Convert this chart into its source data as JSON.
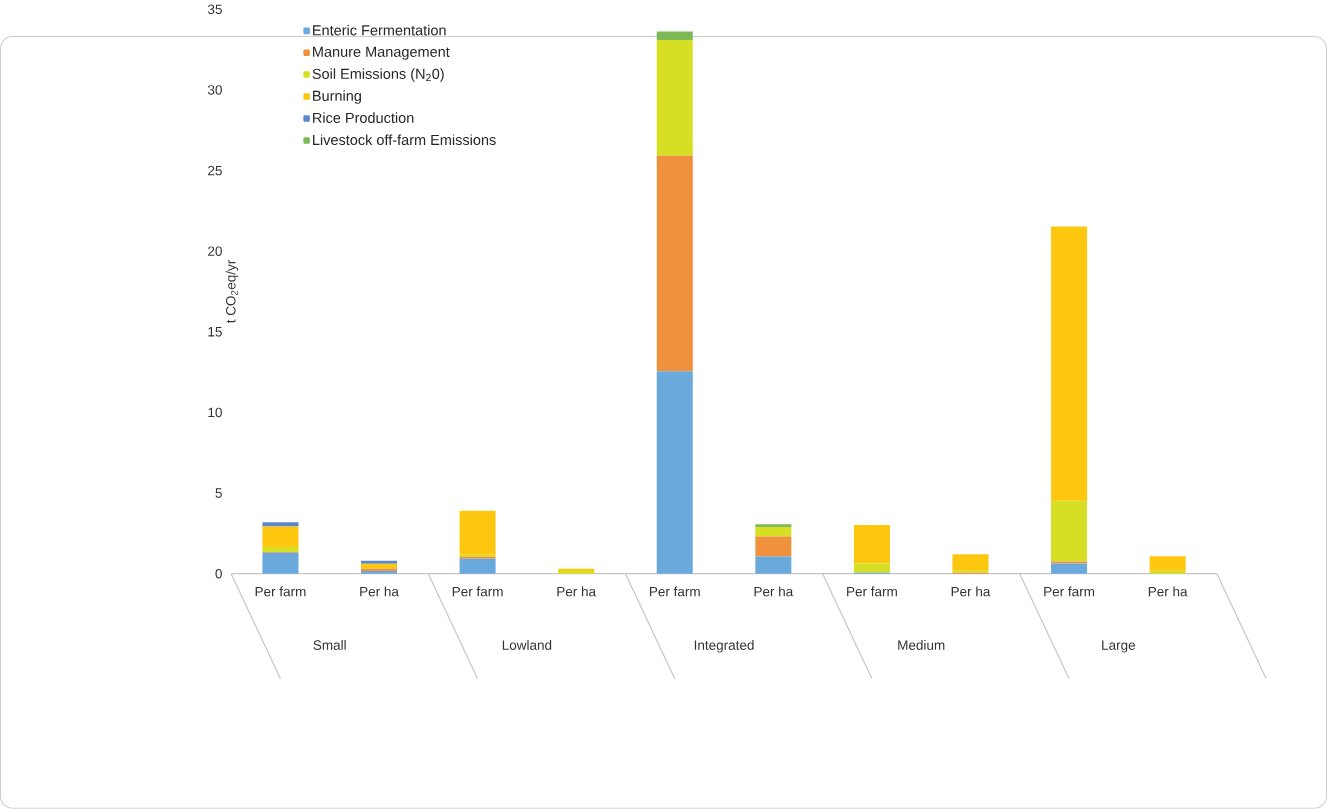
{
  "chart_data": {
    "type": "bar",
    "stacked": true,
    "ylabel": "t CO$_{2}$eq/yr",
    "categories": [
      "Per farm",
      "Per ha",
      "Per farm",
      "Per ha",
      "Per farm",
      "Per ha",
      "Per farm",
      "Per ha",
      "Per farm",
      "Per ha"
    ],
    "annotations": [
      "Small",
      "Lowland",
      "Integrated",
      "Medium",
      "Large"
    ],
    "series": [
      {
        "name": "Enteric Fermentation",
        "color": "#69a9dc",
        "values": [
          1.3,
          0.17,
          0.93,
          0,
          12.56,
          1.06,
          0.06,
          0,
          0.64,
          0
        ]
      },
      {
        "name": "Manure Management",
        "color": "#f0913e",
        "values": [
          0.05,
          0.14,
          0.12,
          0,
          13.35,
          1.24,
          0,
          0.06,
          0.12,
          0
        ]
      },
      {
        "name": "Soil Emissions (N$_{2}$0)",
        "color": "#d6df23",
        "values": [
          0.31,
          0,
          0.12,
          0.17,
          7.18,
          0.6,
          0.58,
          0.12,
          3.77,
          0.19
        ]
      },
      {
        "name": "Burning",
        "color": "#fcc70e",
        "values": [
          1.26,
          0.31,
          2.73,
          0.14,
          0,
          0,
          2.38,
          1.03,
          17.0,
          0.89
        ]
      },
      {
        "name": "Rice Production",
        "color": "#5b86c9",
        "values": [
          0.27,
          0.19,
          0,
          0,
          0,
          0,
          0,
          0,
          0,
          0
        ]
      },
      {
        "name": "Livestock off-farm Emissions",
        "color": "#7db956",
        "values": [
          0,
          0,
          0,
          0,
          0.53,
          0.16,
          0,
          0,
          0,
          0
        ]
      }
    ],
    "ylim": [
      0,
      35
    ],
    "yticks": [
      0,
      5,
      10,
      15,
      20,
      25,
      30,
      35
    ],
    "grid": false,
    "legend": "top left"
  }
}
